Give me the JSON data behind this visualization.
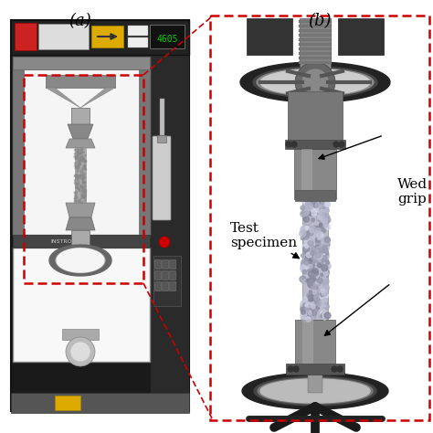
{
  "bg_color": "#ffffff",
  "label_a": "(a)",
  "label_b": "(b)",
  "annotation_test_specimen": "Test\nspecimen",
  "annotation_wedge_grip": "Wed\ngrip",
  "font_size_labels": 13,
  "font_size_annotations": 11,
  "dashed_box_color": "#cc0000",
  "fig_width": 4.74,
  "fig_height": 4.74,
  "dpi": 100
}
